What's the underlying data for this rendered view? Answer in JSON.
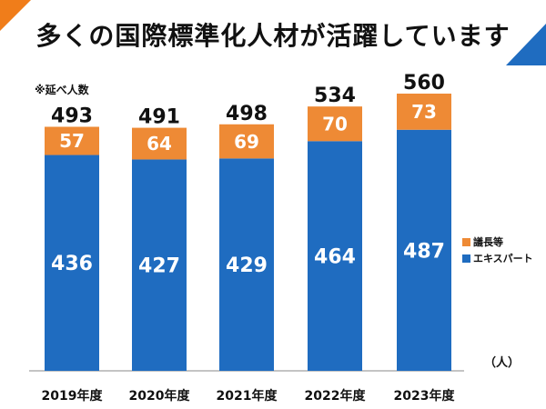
{
  "title": "多くの国際標準化人材が活躍しています",
  "note": "※延べ人数",
  "unit_label": "（人）",
  "colors": {
    "expert": "#1F6CC0",
    "chair": "#EE8A35",
    "accent_orange": "#F07D1A",
    "accent_blue": "#1F6CC0"
  },
  "chart_data": {
    "type": "bar",
    "stacked": true,
    "categories": [
      "2019年度",
      "2020年度",
      "2021年度",
      "2022年度",
      "2023年度"
    ],
    "series": [
      {
        "name": "エキスパート",
        "values": [
          436,
          427,
          429,
          464,
          487
        ]
      },
      {
        "name": "議長等",
        "values": [
          57,
          64,
          69,
          70,
          73
        ]
      }
    ],
    "totals": [
      493,
      491,
      498,
      534,
      560
    ],
    "ylim": [
      0,
      560
    ],
    "legend_position": "right",
    "grid": false
  }
}
